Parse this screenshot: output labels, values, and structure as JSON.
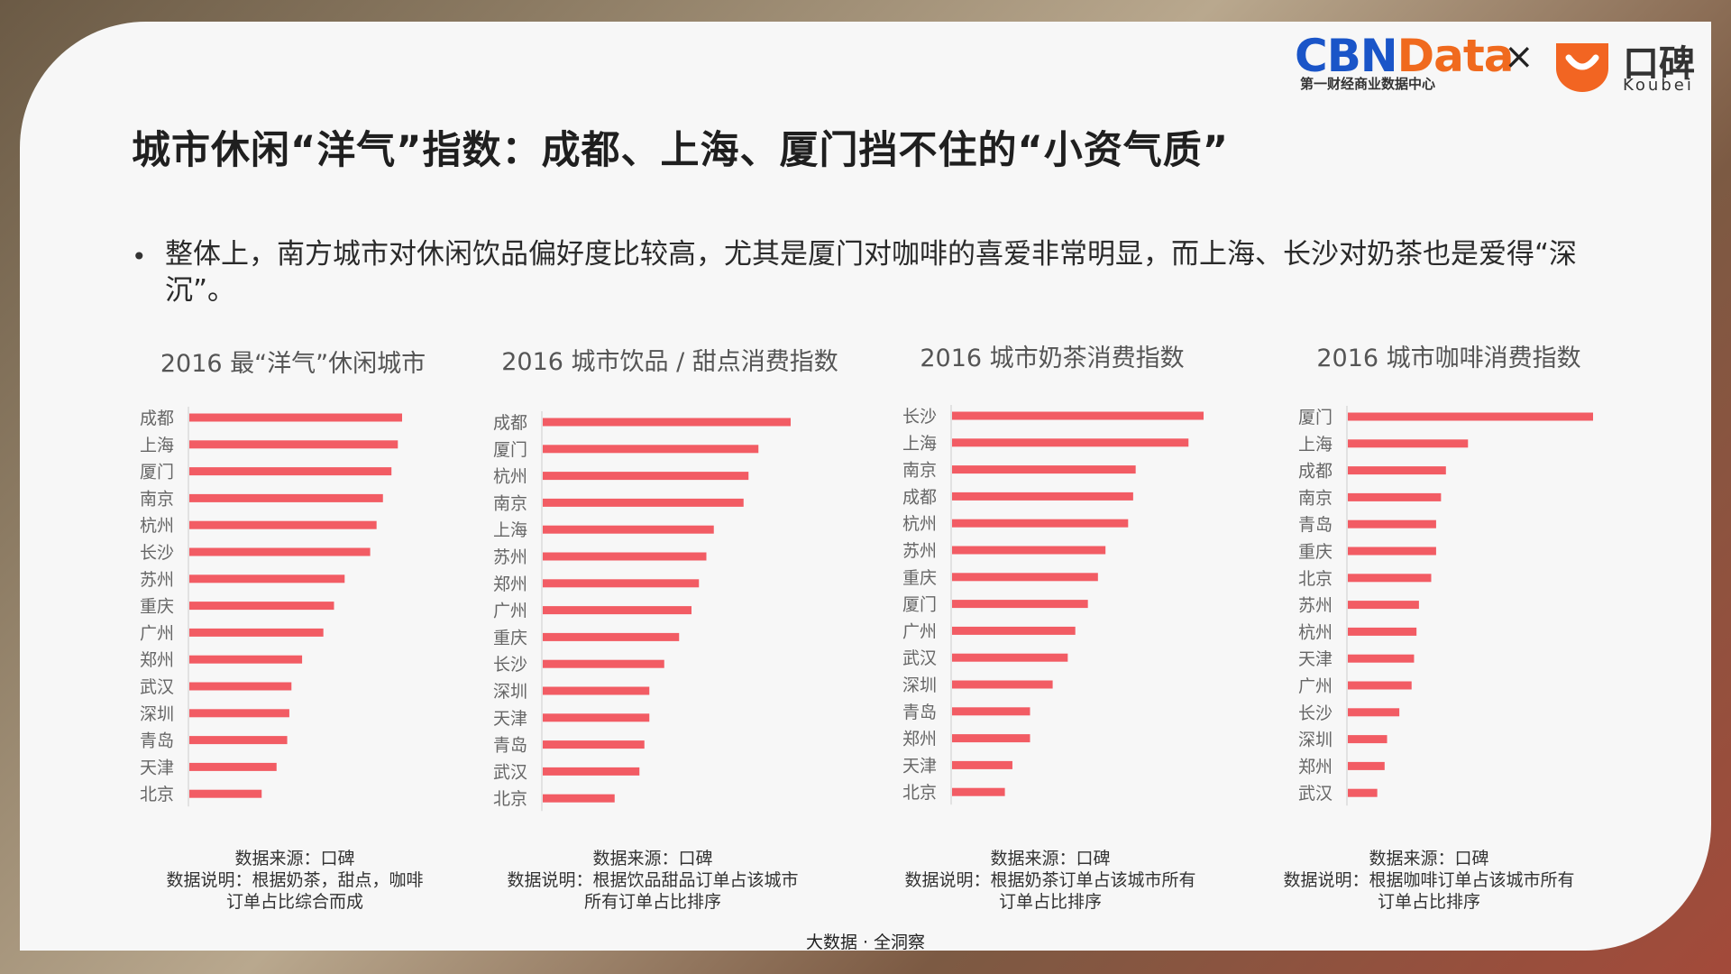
{
  "title": "城市休闲“洋气”指数：成都、上海、厦门挡不住的“小资气质”",
  "bullet": "整体上，南方城市对休闲饮品偏好度比较高，尤其是厦门对咖啡的喜爱非常明显，而上海、长沙对奶茶也是爱得“深沉”。",
  "logos": {
    "cbn_main_a": "CBN",
    "cbn_main_b": "Data",
    "cbn_sub": "第一财经商业数据中心",
    "times": "×",
    "koubei_name": "口碑",
    "koubei_sub": "Koubei",
    "koubei_icon": "koubei-smile-icon",
    "cbn_color": "#1a55c8",
    "data_color": "#f06a1e",
    "koubei_color": "#f26522"
  },
  "footer": "大数据 · 全洞察",
  "colors": {
    "bar": "#f25c64",
    "axis": "#cccccc",
    "label": "#666666"
  },
  "chart_data": [
    {
      "type": "bar",
      "orientation": "horizontal",
      "title": "2016 最“洋气”休闲城市",
      "categories": [
        "成都",
        "上海",
        "厦门",
        "南京",
        "杭州",
        "长沙",
        "苏州",
        "重庆",
        "广州",
        "郑州",
        "武汉",
        "深圳",
        "青岛",
        "天津",
        "北京"
      ],
      "values": [
        100,
        98,
        95,
        91,
        88,
        85,
        73,
        68,
        63,
        53,
        48,
        47,
        46,
        41,
        34
      ],
      "xlim": [
        0,
        100
      ],
      "source": "数据来源：口碑",
      "note_lines": [
        "数据说明：根据奶茶，甜点，咖啡",
        "订单占比综合而成"
      ]
    },
    {
      "type": "bar",
      "orientation": "horizontal",
      "title": "2016 城市饮品 / 甜点消费指数",
      "categories": [
        "成都",
        "厦门",
        "杭州",
        "南京",
        "上海",
        "苏州",
        "郑州",
        "广州",
        "重庆",
        "长沙",
        "深圳",
        "天津",
        "青岛",
        "武汉",
        "北京"
      ],
      "values": [
        100,
        87,
        83,
        81,
        69,
        66,
        63,
        60,
        55,
        49,
        43,
        43,
        41,
        39,
        29
      ],
      "xlim": [
        0,
        100
      ],
      "source": "数据来源：口碑",
      "note_lines": [
        "数据说明：根据饮品甜品订单占该城市",
        "所有订单占比排序"
      ]
    },
    {
      "type": "bar",
      "orientation": "horizontal",
      "title": "2016 城市奶茶消费指数",
      "categories": [
        "长沙",
        "上海",
        "南京",
        "成都",
        "杭州",
        "苏州",
        "重庆",
        "厦门",
        "广州",
        "武汉",
        "深圳",
        "青岛",
        "郑州",
        "天津",
        "北京"
      ],
      "values": [
        100,
        94,
        73,
        72,
        70,
        61,
        58,
        54,
        49,
        46,
        40,
        31,
        31,
        24,
        21
      ],
      "xlim": [
        0,
        100
      ],
      "source": "数据来源：口碑",
      "note_lines": [
        "数据说明：根据奶茶订单占该城市所有",
        "订单占比排序"
      ]
    },
    {
      "type": "bar",
      "orientation": "horizontal",
      "title": "2016 城市咖啡消费指数",
      "categories": [
        "厦门",
        "上海",
        "成都",
        "南京",
        "青岛",
        "重庆",
        "北京",
        "苏州",
        "杭州",
        "天津",
        "广州",
        "长沙",
        "深圳",
        "郑州",
        "武汉"
      ],
      "values": [
        100,
        49,
        40,
        38,
        36,
        36,
        34,
        29,
        28,
        27,
        26,
        21,
        16,
        15,
        12
      ],
      "xlim": [
        0,
        100
      ],
      "source": "数据来源：口碑",
      "note_lines": [
        "数据说明：根据咖啡订单占该城市所有",
        "订单占比排序"
      ]
    }
  ]
}
